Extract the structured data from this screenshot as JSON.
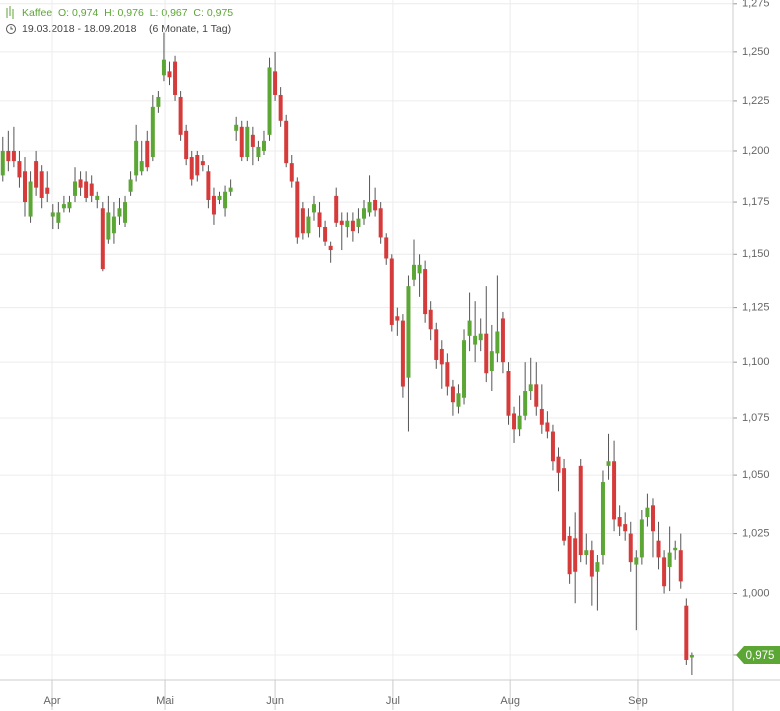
{
  "chart_data": {
    "type": "candlestick",
    "legend_text": "Kaffee  O: 0,974  H: 0,976  L: 0,967  C: 0,975",
    "subtitle": "19.03.2018 - 18.09.2018",
    "period": "(6 Monate, 1 Tag)",
    "last_value_label": "0,975",
    "up_color": "#5ca635",
    "down_color": "#d63b3b",
    "log_scale": true,
    "grid": true,
    "xlim": [
      -0.5,
      131.4
    ],
    "xticks": [
      {
        "value": 8.86,
        "label": "Apr"
      },
      {
        "value": 29.2,
        "label": "Mai"
      },
      {
        "value": 49,
        "label": "Jun"
      },
      {
        "value": 70.2,
        "label": "Jul"
      },
      {
        "value": 91.3,
        "label": "Aug"
      },
      {
        "value": 114.3,
        "label": "Sep"
      }
    ],
    "ylim": [
      0.965,
      1.277
    ],
    "yticks": [
      {
        "value": 0.975,
        "label": "0,975"
      },
      {
        "value": 1.0,
        "label": "1,000"
      },
      {
        "value": 1.025,
        "label": "1,025"
      },
      {
        "value": 1.05,
        "label": "1,050"
      },
      {
        "value": 1.075,
        "label": "1,075"
      },
      {
        "value": 1.1,
        "label": "1,100"
      },
      {
        "value": 1.125,
        "label": "1,125"
      },
      {
        "value": 1.15,
        "label": "1,150"
      },
      {
        "value": 1.175,
        "label": "1,175"
      },
      {
        "value": 1.2,
        "label": "1,200"
      },
      {
        "value": 1.225,
        "label": "1,225"
      },
      {
        "value": 1.25,
        "label": "1,250"
      },
      {
        "value": 1.275,
        "label": "1,275"
      }
    ],
    "open": [
      1.188,
      1.2,
      1.2,
      1.195,
      1.19,
      1.168,
      1.195,
      1.19,
      1.182,
      1.168,
      1.165,
      1.172,
      1.172,
      1.178,
      1.186,
      1.185,
      1.184,
      1.176,
      1.172,
      1.157,
      1.16,
      1.168,
      1.165,
      1.18,
      1.188,
      1.19,
      1.205,
      1.197,
      1.222,
      1.238,
      1.24,
      1.245,
      1.227,
      1.21,
      1.197,
      1.198,
      1.195,
      1.19,
      1.178,
      1.176,
      1.172,
      1.18,
      1.21,
      1.212,
      1.197,
      1.208,
      1.197,
      1.2,
      1.208,
      1.24,
      1.228,
      1.215,
      1.194,
      1.185,
      1.172,
      1.16,
      1.17,
      1.17,
      1.163,
      1.154,
      1.178,
      1.166,
      1.163,
      1.166,
      1.163,
      1.167,
      1.17,
      1.176,
      1.172,
      1.158,
      1.148,
      1.121,
      1.119,
      1.093,
      1.138,
      1.141,
      1.143,
      1.124,
      1.115,
      1.106,
      1.1,
      1.089,
      1.08,
      1.084,
      1.112,
      1.108,
      1.11,
      1.113,
      1.096,
      1.104,
      1.12,
      1.096,
      1.077,
      1.07,
      1.076,
      1.087,
      1.09,
      1.079,
      1.073,
      1.069,
      1.058,
      1.053,
      1.024,
      1.023,
      1.054,
      1.016,
      1.018,
      1.009,
      1.016,
      1.054,
      1.056,
      1.032,
      1.029,
      1.025,
      1.012,
      1.015,
      1.032,
      1.037,
      1.022,
      1.015,
      1.011,
      1.018,
      1.018,
      0.995,
      0.974
    ],
    "high": [
      1.207,
      1.21,
      1.212,
      1.2,
      1.197,
      1.19,
      1.2,
      1.193,
      1.19,
      1.174,
      1.175,
      1.178,
      1.178,
      1.192,
      1.19,
      1.19,
      1.188,
      1.18,
      1.175,
      1.178,
      1.175,
      1.177,
      1.178,
      1.19,
      1.213,
      1.205,
      1.21,
      1.228,
      1.23,
      1.26,
      1.245,
      1.248,
      1.23,
      1.213,
      1.2,
      1.2,
      1.198,
      1.193,
      1.182,
      1.18,
      1.183,
      1.186,
      1.217,
      1.215,
      1.215,
      1.212,
      1.205,
      1.21,
      1.247,
      1.25,
      1.232,
      1.218,
      1.198,
      1.187,
      1.175,
      1.172,
      1.178,
      1.175,
      1.166,
      1.156,
      1.182,
      1.17,
      1.17,
      1.17,
      1.172,
      1.176,
      1.188,
      1.182,
      1.175,
      1.16,
      1.15,
      1.125,
      1.122,
      1.14,
      1.157,
      1.15,
      1.147,
      1.128,
      1.118,
      1.11,
      1.104,
      1.092,
      1.09,
      1.115,
      1.132,
      1.128,
      1.12,
      1.135,
      1.117,
      1.14,
      1.123,
      1.1,
      1.08,
      1.085,
      1.1,
      1.102,
      1.1,
      1.09,
      1.078,
      1.072,
      1.062,
      1.057,
      1.028,
      1.034,
      1.057,
      1.025,
      1.022,
      1.016,
      1.052,
      1.068,
      1.065,
      1.037,
      1.034,
      1.03,
      1.018,
      1.035,
      1.042,
      1.04,
      1.03,
      1.018,
      1.028,
      1.022,
      1.025,
      0.998,
      0.976
    ],
    "low": [
      1.185,
      1.19,
      1.192,
      1.182,
      1.168,
      1.165,
      1.178,
      1.172,
      1.175,
      1.162,
      1.162,
      1.17,
      1.17,
      1.175,
      1.178,
      1.175,
      1.175,
      1.172,
      1.142,
      1.155,
      1.155,
      1.164,
      1.163,
      1.178,
      1.185,
      1.188,
      1.19,
      1.195,
      1.219,
      1.235,
      1.233,
      1.225,
      1.205,
      1.193,
      1.183,
      1.185,
      1.19,
      1.172,
      1.164,
      1.174,
      1.168,
      1.178,
      1.205,
      1.195,
      1.195,
      1.193,
      1.195,
      1.198,
      1.205,
      1.225,
      1.212,
      1.192,
      1.182,
      1.155,
      1.157,
      1.158,
      1.166,
      1.158,
      1.154,
      1.146,
      1.163,
      1.152,
      1.158,
      1.156,
      1.16,
      1.164,
      1.168,
      1.168,
      1.155,
      1.145,
      1.114,
      1.112,
      1.084,
      1.069,
      1.135,
      1.13,
      1.118,
      1.11,
      1.097,
      1.088,
      1.085,
      1.076,
      1.077,
      1.081,
      1.105,
      1.1,
      1.105,
      1.091,
      1.087,
      1.1,
      1.095,
      1.072,
      1.064,
      1.067,
      1.074,
      1.083,
      1.076,
      1.068,
      1.066,
      1.052,
      1.043,
      1.02,
      1.004,
      0.996,
      1.013,
      1.012,
      0.995,
      0.993,
      1.012,
      1.048,
      1.026,
      1.024,
      1.022,
      1.009,
      0.985,
      1.012,
      1.028,
      1.015,
      1.01,
      1.0,
      1.001,
      1.014,
      1.002,
      0.971,
      0.967
    ],
    "close": [
      1.2,
      1.195,
      1.195,
      1.187,
      1.175,
      1.185,
      1.182,
      1.177,
      1.179,
      1.17,
      1.17,
      1.174,
      1.175,
      1.185,
      1.182,
      1.177,
      1.178,
      1.178,
      1.143,
      1.17,
      1.168,
      1.172,
      1.175,
      1.186,
      1.205,
      1.195,
      1.192,
      1.222,
      1.227,
      1.246,
      1.237,
      1.228,
      1.208,
      1.196,
      1.186,
      1.188,
      1.193,
      1.176,
      1.169,
      1.178,
      1.18,
      1.182,
      1.213,
      1.197,
      1.212,
      1.202,
      1.202,
      1.205,
      1.242,
      1.228,
      1.215,
      1.194,
      1.185,
      1.158,
      1.16,
      1.168,
      1.174,
      1.163,
      1.156,
      1.152,
      1.165,
      1.164,
      1.166,
      1.161,
      1.167,
      1.172,
      1.175,
      1.171,
      1.158,
      1.148,
      1.117,
      1.119,
      1.089,
      1.135,
      1.145,
      1.145,
      1.122,
      1.115,
      1.101,
      1.099,
      1.089,
      1.082,
      1.086,
      1.11,
      1.119,
      1.112,
      1.113,
      1.095,
      1.105,
      1.114,
      1.1,
      1.076,
      1.07,
      1.076,
      1.087,
      1.09,
      1.08,
      1.072,
      1.069,
      1.056,
      1.051,
      1.022,
      1.008,
      1.009,
      1.016,
      1.018,
      1.007,
      1.013,
      1.047,
      1.056,
      1.031,
      1.028,
      1.026,
      1.013,
      1.015,
      1.031,
      1.036,
      1.026,
      1.015,
      1.003,
      1.017,
      1.019,
      1.005,
      0.973,
      0.975
    ]
  }
}
